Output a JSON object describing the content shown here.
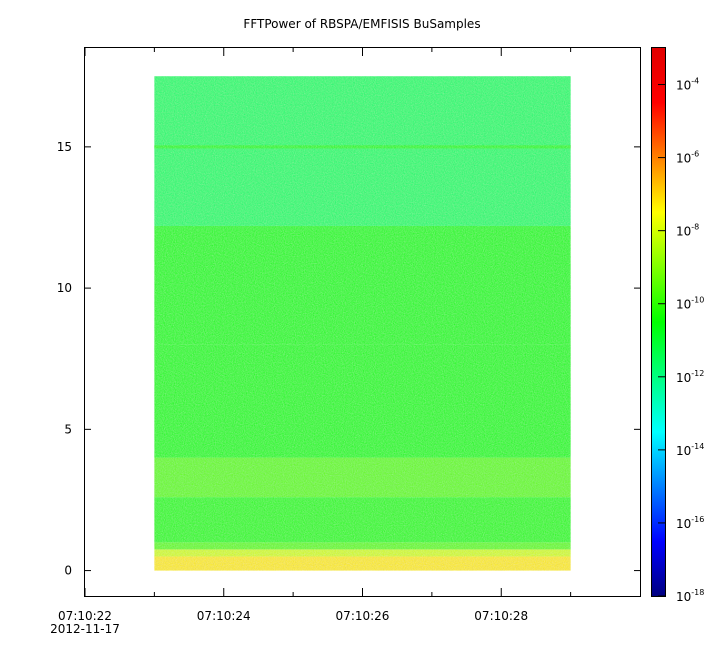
{
  "chart_data": {
    "type": "heatmap",
    "title": "FFTPower of RBSPA/EMFISIS  BuSamples",
    "xlabel": "",
    "ylabel": "",
    "x_axis": {
      "start": "07:10:22",
      "end": "07:10:30",
      "date_label": "2012-11-17",
      "major_ticks": [
        "07:10:22",
        "07:10:24",
        "07:10:26",
        "07:10:28"
      ],
      "minor_tick_seconds": [
        23,
        25,
        27,
        29
      ]
    },
    "y_axis": {
      "range": [
        -0.9,
        18.5
      ],
      "ticks": [
        0,
        5,
        10,
        15
      ]
    },
    "data_extent": {
      "x_start_seconds": 23.0,
      "x_end_seconds": 29.0,
      "y_min": 0,
      "y_max": 17.5
    },
    "colorbar": {
      "scale": "log",
      "range": [
        1e-18,
        0.001
      ],
      "tick_base": "10",
      "tick_exponents": [
        "-4",
        "-6",
        "-8",
        "-10",
        "-12",
        "-14",
        "-16",
        "-18"
      ],
      "colormap": [
        "#00007f",
        "#0000ff",
        "#007fff",
        "#00ffff",
        "#00ff80",
        "#00ff00",
        "#80ff00",
        "#ffff00",
        "#ff8000",
        "#ff0000",
        "#e00000"
      ]
    },
    "power_bands": [
      {
        "y_from": 0.0,
        "y_to": 0.5,
        "log10_power": -7.3
      },
      {
        "y_from": 0.5,
        "y_to": 0.75,
        "log10_power": -8.0
      },
      {
        "y_from": 0.75,
        "y_to": 1.0,
        "log10_power": -9.3
      },
      {
        "y_from": 1.0,
        "y_to": 2.6,
        "log10_power": -10.1
      },
      {
        "y_from": 2.6,
        "y_to": 4.0,
        "log10_power": -9.3
      },
      {
        "y_from": 4.0,
        "y_to": 8.0,
        "log10_power": -10.4
      },
      {
        "y_from": 8.0,
        "y_to": 12.2,
        "log10_power": -10.6
      },
      {
        "y_from": 12.2,
        "y_to": 17.5,
        "log10_power": -11.8
      }
    ],
    "line_features": [
      {
        "y": 15.0,
        "log10_power": -10.6
      }
    ],
    "grid": false,
    "legend": "none"
  }
}
